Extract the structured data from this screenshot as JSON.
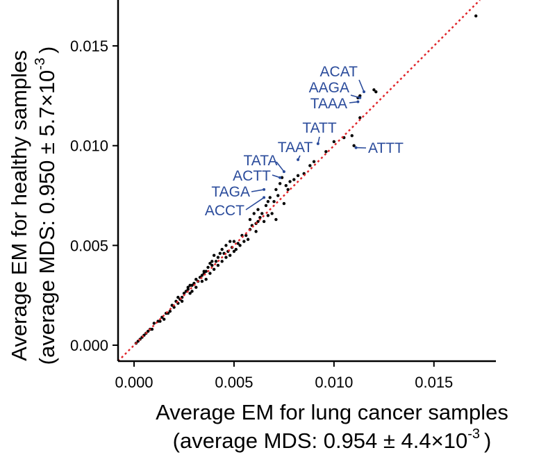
{
  "chart_data": {
    "type": "scatter",
    "xlabel": "Average EM for lung cancer samples",
    "xlabel_sub": {
      "prefix": "(average MDS: 0.954 ± 4.4×10",
      "exp": "-3",
      "suffix": ")"
    },
    "ylabel": "Average EM for healthy samples",
    "ylabel_sub": {
      "prefix": "(average MDS: 0.950 ± 5.7×10",
      "exp": "-3",
      "suffix": ")"
    },
    "xlim": [
      -0.0008,
      0.0181
    ],
    "ylim": [
      -0.0008,
      0.0173
    ],
    "x_ticks": [
      0.0,
      0.005,
      0.01,
      0.015
    ],
    "x_tick_labels": [
      "0.000",
      "0.005",
      "0.010",
      "0.015"
    ],
    "y_ticks": [
      0.0,
      0.005,
      0.01,
      0.015
    ],
    "y_tick_labels": [
      "0.000",
      "0.005",
      "0.010",
      "0.015"
    ],
    "grid": false,
    "point_color": "#000000",
    "reference_line": {
      "type": "identity",
      "style": "dotted",
      "color": "#e0262b"
    },
    "annotation_color": "#2a4b9b",
    "points": [
      [
        0.0171,
        0.0165
      ],
      [
        0.0121,
        0.0127
      ],
      [
        0.012,
        0.0128
      ],
      [
        0.0113,
        0.0125
      ],
      [
        0.0112,
        0.0124
      ],
      [
        0.0113,
        0.0114
      ],
      [
        0.011,
        0.01
      ],
      [
        0.0109,
        0.0105
      ],
      [
        0.0105,
        0.0104
      ],
      [
        0.01,
        0.0102
      ],
      [
        0.0096,
        0.0097
      ],
      [
        0.009,
        0.0092
      ],
      [
        0.0088,
        0.009
      ],
      [
        0.0085,
        0.0086
      ],
      [
        0.0082,
        0.0085
      ],
      [
        0.008,
        0.0083
      ],
      [
        0.0078,
        0.0082
      ],
      [
        0.0074,
        0.0084
      ],
      [
        0.0073,
        0.0081
      ],
      [
        0.0076,
        0.008
      ],
      [
        0.0077,
        0.0078
      ],
      [
        0.0071,
        0.0078
      ],
      [
        0.0068,
        0.0074
      ],
      [
        0.007,
        0.0072
      ],
      [
        0.0067,
        0.0072
      ],
      [
        0.0072,
        0.0075
      ],
      [
        0.0075,
        0.0071
      ],
      [
        0.0066,
        0.007
      ],
      [
        0.0062,
        0.0068
      ],
      [
        0.0064,
        0.0066
      ],
      [
        0.006,
        0.0066
      ],
      [
        0.0067,
        0.0065
      ],
      [
        0.0069,
        0.0066
      ],
      [
        0.0071,
        0.0063
      ],
      [
        0.0062,
        0.0062
      ],
      [
        0.0059,
        0.006
      ],
      [
        0.0058,
        0.0058
      ],
      [
        0.0061,
        0.0057
      ],
      [
        0.0056,
        0.0055
      ],
      [
        0.0054,
        0.0055
      ],
      [
        0.0057,
        0.0053
      ],
      [
        0.005,
        0.0052
      ],
      [
        0.0052,
        0.0051
      ],
      [
        0.0048,
        0.0052
      ],
      [
        0.0046,
        0.005
      ],
      [
        0.0049,
        0.0049
      ],
      [
        0.0047,
        0.0047
      ],
      [
        0.0051,
        0.0048
      ],
      [
        0.0044,
        0.0048
      ],
      [
        0.0045,
        0.0046
      ],
      [
        0.0043,
        0.0046
      ],
      [
        0.0042,
        0.0044
      ],
      [
        0.0041,
        0.0042
      ],
      [
        0.0044,
        0.0042
      ],
      [
        0.004,
        0.0045
      ],
      [
        0.0039,
        0.004
      ],
      [
        0.0038,
        0.0041
      ],
      [
        0.0037,
        0.0039
      ],
      [
        0.0036,
        0.0037
      ],
      [
        0.0038,
        0.0036
      ],
      [
        0.0035,
        0.0037
      ],
      [
        0.0034,
        0.0035
      ],
      [
        0.0036,
        0.0033
      ],
      [
        0.0033,
        0.0034
      ],
      [
        0.0032,
        0.0032
      ],
      [
        0.0031,
        0.0033
      ],
      [
        0.003,
        0.0031
      ],
      [
        0.0029,
        0.003
      ],
      [
        0.0028,
        0.003
      ],
      [
        0.0031,
        0.0029
      ],
      [
        0.0027,
        0.0028
      ],
      [
        0.0026,
        0.0027
      ],
      [
        0.0028,
        0.0026
      ],
      [
        0.0025,
        0.0026
      ],
      [
        0.0024,
        0.0024
      ],
      [
        0.0023,
        0.0023
      ],
      [
        0.0024,
        0.0022
      ],
      [
        0.0022,
        0.0021
      ],
      [
        0.0021,
        0.0022
      ],
      [
        0.002,
        0.0019
      ],
      [
        0.0019,
        0.002
      ],
      [
        0.0018,
        0.0017
      ],
      [
        0.0017,
        0.0016
      ],
      [
        0.0016,
        0.0016
      ],
      [
        0.0015,
        0.0013
      ],
      [
        0.0014,
        0.0014
      ],
      [
        0.0013,
        0.0012
      ],
      [
        0.0012,
        0.0012
      ],
      [
        0.001,
        0.0011
      ],
      [
        0.0009,
        0.0008
      ],
      [
        0.0008,
        0.0008
      ],
      [
        0.0007,
        0.0007
      ],
      [
        0.0006,
        0.0006
      ],
      [
        0.0005,
        0.0005
      ],
      [
        0.0004,
        0.0004
      ],
      [
        0.0003,
        0.0003
      ],
      [
        0.0002,
        0.0002
      ],
      [
        0.0001,
        0.0001
      ],
      [
        0.005,
        0.0047
      ],
      [
        0.0053,
        0.005
      ],
      [
        0.004,
        0.0038
      ],
      [
        0.0034,
        0.0032
      ],
      [
        0.0029,
        0.0027
      ],
      [
        0.0046,
        0.0044
      ],
      [
        0.0055,
        0.0052
      ],
      [
        0.0063,
        0.0064
      ],
      [
        0.0065,
        0.0062
      ],
      [
        0.0058,
        0.0063
      ],
      [
        0.0035,
        0.0036
      ],
      [
        0.0042,
        0.004
      ],
      [
        0.0022,
        0.0024
      ],
      [
        0.0027,
        0.0029
      ],
      [
        0.0048,
        0.0045
      ],
      [
        0.0061,
        0.0061
      ],
      [
        0.0039,
        0.0042
      ]
    ],
    "annotations": [
      {
        "label": "ACAT",
        "x": 0.0115,
        "y": 0.0127
      },
      {
        "label": "AAGA",
        "x": 0.0113,
        "y": 0.0124
      },
      {
        "label": "TAAA",
        "x": 0.0112,
        "y": 0.0122
      },
      {
        "label": "TATT",
        "x": 0.0092,
        "y": 0.0101
      },
      {
        "label": "ATTT",
        "x": 0.0111,
        "y": 0.0099
      },
      {
        "label": "TAAT",
        "x": 0.0082,
        "y": 0.0093
      },
      {
        "label": "TATA",
        "x": 0.0075,
        "y": 0.0087
      },
      {
        "label": "ACTT",
        "x": 0.0073,
        "y": 0.0084
      },
      {
        "label": "TAGA",
        "x": 0.0065,
        "y": 0.0078
      },
      {
        "label": "ACCT",
        "x": 0.0065,
        "y": 0.0074
      }
    ]
  }
}
